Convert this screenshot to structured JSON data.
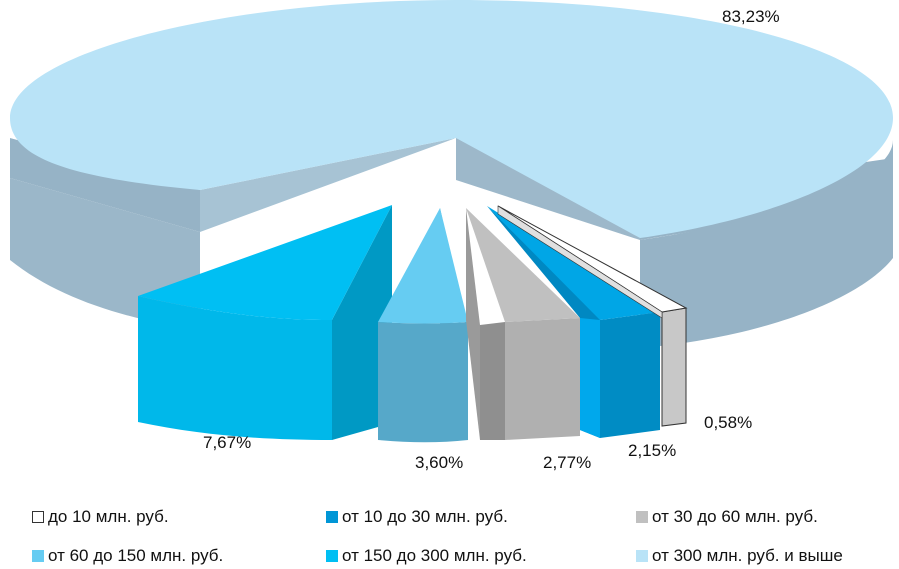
{
  "chart_data": {
    "type": "pie",
    "style": "3d-exploded",
    "categories": [
      "до 10 млн. руб.",
      "от 10 до 30 млн. руб.",
      "от 30 до 60 млн. руб.",
      "от 60 до 150 млн. руб.",
      "от 150 до 300 млн. руб.",
      "от 300 млн. руб. и выше"
    ],
    "values": [
      0.58,
      2.15,
      2.77,
      3.6,
      7.67,
      83.23
    ],
    "value_labels": [
      "0,58%",
      "2,15%",
      "2,77%",
      "3,60%",
      "7,67%",
      "83,23%"
    ],
    "colors": [
      "#ffffff",
      "#0096d6",
      "#c0c0c0",
      "#66ccf2",
      "#00bff3",
      "#b9e3f7"
    ],
    "title": "",
    "legend_position": "bottom"
  }
}
